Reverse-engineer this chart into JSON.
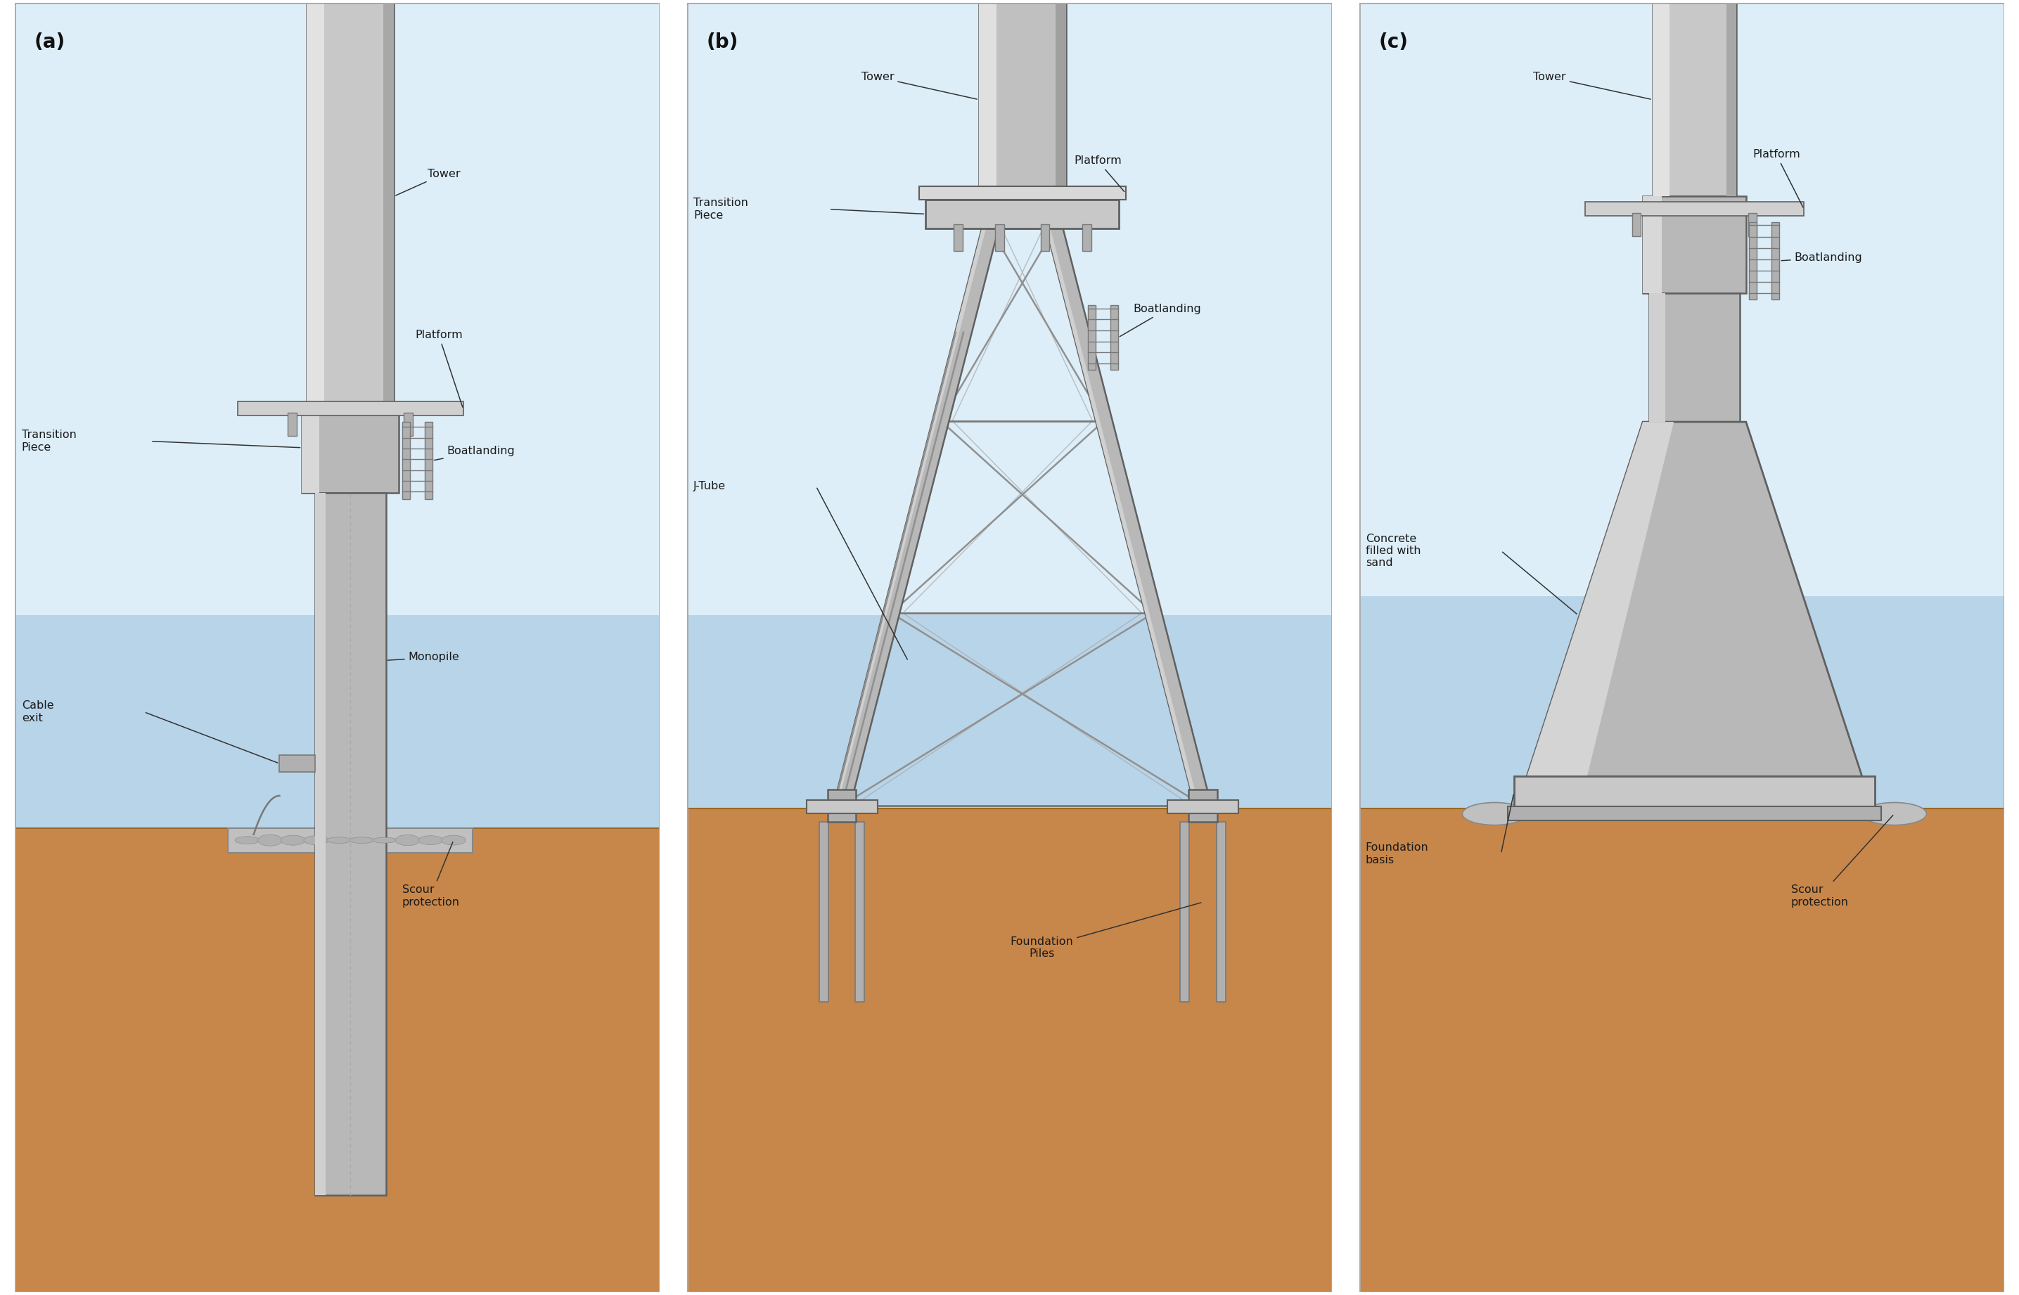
{
  "figure_width": 28.71,
  "figure_height": 18.42,
  "bg_color": "#ffffff",
  "water_color": "#b8d4e8",
  "sky_color": "#ddeef8",
  "seabed_color": "#c8874a",
  "sc": "#b0b0b0",
  "sd": "#787878",
  "sl": "#d0d0d0",
  "se": "#606060",
  "text_color": "#1a1a1a",
  "label_fs": 11.5,
  "title_fs": 20,
  "panels": [
    "(a)",
    "(b)",
    "(c)"
  ]
}
